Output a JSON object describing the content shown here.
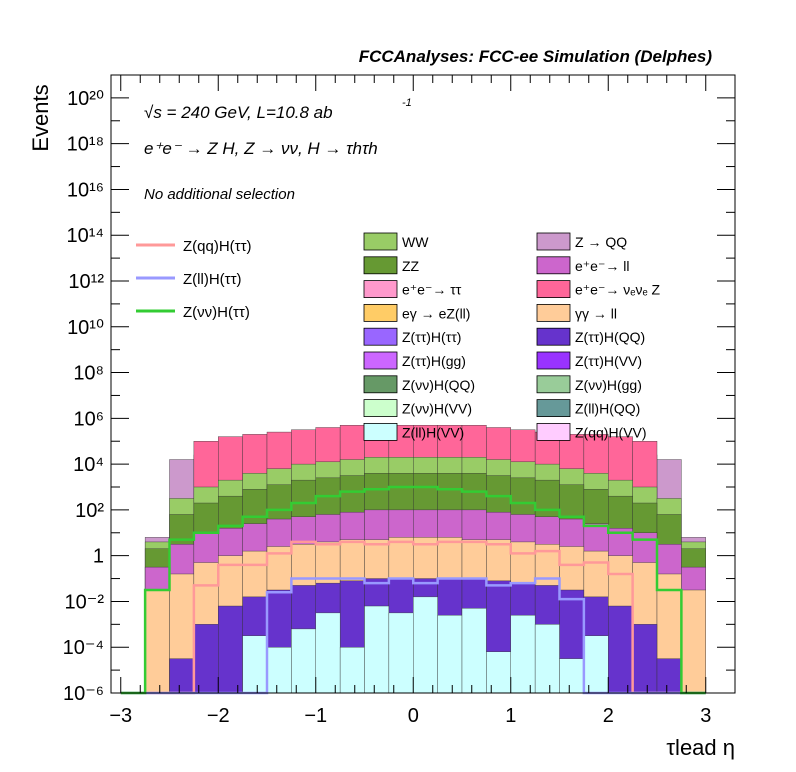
{
  "header_title": "FCCAnalyses: FCC-ee Simulation (Delphes)",
  "annotations": {
    "energy_line": "√s = 240 GeV, L=10.8 ab",
    "energy_exp": "-1",
    "process_line": "e⁺e⁻ → Z H, Z → νν, H → τhτh",
    "selection_line": "No additional selection"
  },
  "colors": {
    "WW": "#99cc66",
    "ZZ": "#669933",
    "ee_tautau": "#ff99cc",
    "egamma_eZll": "#ffcc66",
    "Ztautau_Htautau": "#9966ff",
    "Ztautau_Hgg": "#cc66ff",
    "Znunu_HQQ": "#669966",
    "Znunu_HVV": "#ccffcc",
    "Zll_HVV": "#ccffff",
    "Z_QQ": "#cc99cc",
    "ee_ll": "#cc66cc",
    "ee_nunuZ": "#ff6699",
    "gammagamma_ll": "#ffcc99",
    "Ztautau_HQQ": "#6633cc",
    "Ztautau_HVV": "#9933ff",
    "Znunu_Hgg": "#99cc99",
    "Zll_HQQ": "#669999",
    "Zqq_HVV": "#ffccff",
    "sig_qq": "#ff9999",
    "sig_ll": "#9999ff",
    "sig_nunu": "#33cc33"
  },
  "chart_data": {
    "type": "histogram",
    "title": "FCCAnalyses: FCC-ee Simulation (Delphes)",
    "xlabel": "τlead η",
    "ylabel": "Events",
    "xlim": [
      -3.1,
      3.3
    ],
    "ylim_log10": [
      -6,
      21
    ],
    "yscale": "log",
    "bin_edges": [
      -3.0,
      -2.75,
      -2.5,
      -2.25,
      -2.0,
      -1.75,
      -1.5,
      -1.25,
      -1.0,
      -0.75,
      -0.5,
      -0.25,
      0.0,
      0.25,
      0.5,
      0.75,
      1.0,
      1.25,
      1.5,
      1.75,
      2.0,
      2.25,
      2.5,
      2.75,
      3.0
    ],
    "x_ticks": [
      "−3",
      "−2",
      "−1",
      "0",
      "1",
      "2",
      "3"
    ],
    "y_ticks": [
      "10⁻⁶",
      "10⁻⁴",
      "10⁻²",
      "1",
      "10²",
      "10⁴",
      "10⁶",
      "10⁸",
      "10¹⁰",
      "10¹²",
      "10¹⁴",
      "10¹⁶",
      "10¹⁸",
      "10²⁰"
    ],
    "stack_totals_log10": [
      {
        "name": "Z → QQ",
        "color_key": "Z_QQ",
        "values": [
          -6,
          0.8,
          4.2,
          4.4,
          4.5,
          4.6,
          4.7,
          4.8,
          4.9,
          5.0,
          5.0,
          5.1,
          5.1,
          5.1,
          5.0,
          5.0,
          4.9,
          4.8,
          4.7,
          4.6,
          4.5,
          4.4,
          4.2,
          0.8
        ]
      },
      {
        "name": "e⁺e⁻ → νₑνₑ Z",
        "color_key": "ee_nunuZ",
        "values": [
          -6,
          -6,
          -6,
          5.0,
          5.2,
          5.3,
          5.4,
          5.5,
          5.6,
          5.7,
          5.7,
          5.7,
          5.7,
          5.7,
          5.7,
          5.6,
          5.5,
          5.4,
          5.3,
          5.3,
          5.2,
          5.0,
          -6,
          -6
        ]
      },
      {
        "name": "WW",
        "color_key": "WW",
        "values": [
          -6,
          0.6,
          2.5,
          3.0,
          3.3,
          3.6,
          3.8,
          4.0,
          4.1,
          4.2,
          4.3,
          4.3,
          4.3,
          4.3,
          4.3,
          4.2,
          4.1,
          4.0,
          3.8,
          3.6,
          3.3,
          3.0,
          2.5,
          0.6
        ]
      },
      {
        "name": "ZZ",
        "color_key": "ZZ",
        "values": [
          -6,
          0.3,
          1.8,
          2.3,
          2.6,
          2.9,
          3.1,
          3.3,
          3.4,
          3.5,
          3.6,
          3.6,
          3.6,
          3.6,
          3.6,
          3.5,
          3.4,
          3.3,
          3.1,
          2.9,
          2.6,
          2.3,
          1.8,
          0.3
        ]
      },
      {
        "name": "e⁺e⁻ → ll",
        "color_key": "ee_ll",
        "values": [
          -6,
          -0.5,
          0.5,
          1.0,
          1.2,
          1.4,
          1.6,
          1.7,
          1.8,
          1.9,
          2.0,
          2.0,
          2.0,
          2.0,
          2.0,
          1.9,
          1.8,
          1.7,
          1.6,
          1.4,
          1.2,
          1.0,
          0.5,
          -0.5
        ]
      },
      {
        "name": "γγ → ll",
        "color_key": "gammagamma_ll",
        "values": [
          -6,
          -1.5,
          -0.8,
          -0.3,
          0.0,
          0.2,
          0.4,
          0.5,
          0.6,
          0.7,
          0.7,
          0.8,
          0.8,
          0.8,
          0.7,
          0.7,
          0.6,
          0.5,
          0.4,
          0.2,
          0.0,
          -0.3,
          -0.8,
          -1.5
        ]
      },
      {
        "name": "Z(ττ)H(QQ)",
        "color_key": "Ztautau_HQQ",
        "values": [
          -6,
          -6,
          -4.5,
          -3.0,
          -2.2,
          -1.8,
          -1.5,
          -1.3,
          -1.2,
          -1.1,
          -1.0,
          -1.0,
          -1.0,
          -1.0,
          -1.0,
          -1.1,
          -1.2,
          -1.3,
          -1.5,
          -1.8,
          -2.2,
          -3.0,
          -4.5,
          -6
        ]
      },
      {
        "name": "Z(ll)H(VV)",
        "color_key": "Zll_HVV",
        "values": [
          -6,
          -6,
          -6,
          -6,
          -6,
          -3.5,
          -4.0,
          -3.2,
          -2.5,
          -4.0,
          -2.2,
          -2.5,
          -1.8,
          -2.6,
          -2.3,
          -4.2,
          -2.6,
          -3.0,
          -4.5,
          -3.5,
          -6,
          -6,
          -6,
          -6
        ]
      }
    ],
    "signal_lines_log10": [
      {
        "name": "Z(qq)H(ττ)",
        "color_key": "sig_qq",
        "values": [
          -6,
          -6,
          -6,
          -1.3,
          -0.4,
          -0.4,
          0.1,
          0.6,
          0.5,
          0.6,
          0.5,
          0.6,
          0.5,
          0.6,
          0.6,
          0.5,
          0.1,
          0.2,
          -0.4,
          -0.3,
          -0.8,
          -6,
          -6,
          -6
        ]
      },
      {
        "name": "Z(ll)H(ττ)",
        "color_key": "sig_ll",
        "values": [
          -6,
          -6,
          -6,
          -6,
          -6,
          -6,
          -1.6,
          -1.0,
          -1.0,
          -1.0,
          -1.2,
          -1.0,
          -1.2,
          -1.0,
          -1.0,
          -1.3,
          -1.2,
          -1.0,
          -1.9,
          -6,
          -6,
          -6,
          -6,
          -6
        ]
      },
      {
        "name": "Z(νν)H(ττ)",
        "color_key": "sig_nunu",
        "values": [
          -6,
          -1.5,
          0.7,
          1.0,
          1.3,
          1.7,
          2.0,
          2.3,
          2.6,
          2.8,
          2.9,
          3.0,
          3.0,
          2.9,
          2.8,
          2.6,
          2.3,
          2.0,
          1.7,
          1.3,
          1.0,
          0.7,
          -1.5,
          -6
        ]
      }
    ],
    "legend_signals": [
      {
        "label": "Z(qq)H(ττ)",
        "color_key": "sig_qq"
      },
      {
        "label": "Z(ll)H(ττ)",
        "color_key": "sig_ll"
      },
      {
        "label": "Z(νν)H(ττ)",
        "color_key": "sig_nunu"
      }
    ],
    "legend_backgrounds": [
      {
        "label": "WW",
        "color_key": "WW"
      },
      {
        "label": "Z → QQ",
        "color_key": "Z_QQ"
      },
      {
        "label": "ZZ",
        "color_key": "ZZ"
      },
      {
        "label": "e⁺e⁻→ ll",
        "color_key": "ee_ll"
      },
      {
        "label": "e⁺e⁻→ ττ",
        "color_key": "ee_tautau"
      },
      {
        "label": "e⁺e⁻→ νₑνₑ Z",
        "color_key": "ee_nunuZ"
      },
      {
        "label": "eγ → eZ(ll)",
        "color_key": "egamma_eZll"
      },
      {
        "label": "γγ → ll",
        "color_key": "gammagamma_ll"
      },
      {
        "label": "Z(ττ)H(ττ)",
        "color_key": "Ztautau_Htautau"
      },
      {
        "label": "Z(ττ)H(QQ)",
        "color_key": "Ztautau_HQQ"
      },
      {
        "label": "Z(ττ)H(gg)",
        "color_key": "Ztautau_Hgg"
      },
      {
        "label": "Z(ττ)H(VV)",
        "color_key": "Ztautau_HVV"
      },
      {
        "label": "Z(νν)H(QQ)",
        "color_key": "Znunu_HQQ"
      },
      {
        "label": "Z(νν)H(gg)",
        "color_key": "Znunu_Hgg"
      },
      {
        "label": "Z(νν)H(VV)",
        "color_key": "Znunu_HVV"
      },
      {
        "label": "Z(ll)H(QQ)",
        "color_key": "Zll_HQQ"
      },
      {
        "label": "Z(ll)H(VV)",
        "color_key": "Zll_HVV"
      },
      {
        "label": "Z(qq)H(VV)",
        "color_key": "Zqq_HVV"
      }
    ]
  }
}
